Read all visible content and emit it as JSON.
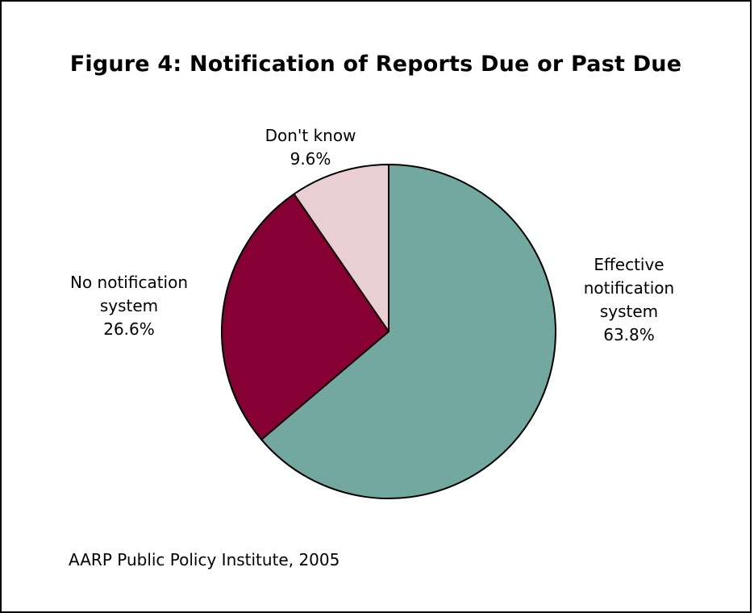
{
  "chart_data": {
    "type": "pie",
    "title": "Figure 4:  Notification of Reports Due or Past Due",
    "slices": [
      {
        "label_lines": [
          "Effective",
          "notification",
          "system"
        ],
        "value": 63.8,
        "value_label": "63.8%",
        "color": "#72a8a0"
      },
      {
        "label_lines": [
          "No notification",
          "system"
        ],
        "value": 26.6,
        "value_label": "26.6%",
        "color": "#860033"
      },
      {
        "label_lines": [
          "Don't know"
        ],
        "value": 9.6,
        "value_label": "9.6%",
        "color": "#e9cfd3"
      }
    ],
    "legend": "none"
  },
  "source": "AARP Public Policy Institute, 2005"
}
